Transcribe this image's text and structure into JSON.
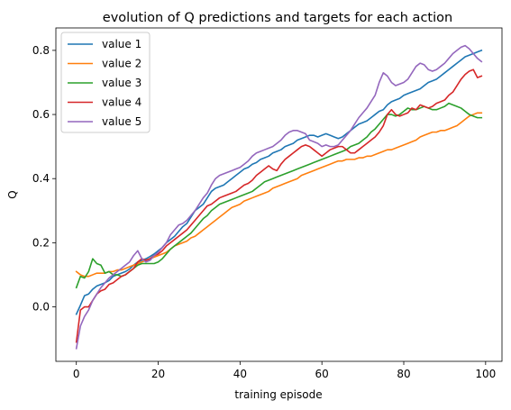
{
  "chart_data": {
    "type": "line",
    "title": "evolution of Q predictions and targets for each action",
    "xlabel": "training episode",
    "ylabel": "Q",
    "xlim": [
      -5,
      104
    ],
    "ylim": [
      -0.17,
      0.87
    ],
    "xticks": [
      0,
      20,
      40,
      60,
      80,
      100
    ],
    "yticks": [
      0.0,
      0.2,
      0.4,
      0.6,
      0.8
    ],
    "xtick_labels": [
      "0",
      "20",
      "40",
      "60",
      "80",
      "100"
    ],
    "ytick_labels": [
      "0.0",
      "0.2",
      "0.4",
      "0.6",
      "0.8"
    ],
    "grid": false,
    "legend_position": "top-left",
    "x": [
      0,
      1,
      2,
      3,
      4,
      5,
      6,
      7,
      8,
      9,
      10,
      11,
      12,
      13,
      14,
      15,
      16,
      17,
      18,
      19,
      20,
      21,
      22,
      23,
      24,
      25,
      26,
      27,
      28,
      29,
      30,
      31,
      32,
      33,
      34,
      35,
      36,
      37,
      38,
      39,
      40,
      41,
      42,
      43,
      44,
      45,
      46,
      47,
      48,
      49,
      50,
      51,
      52,
      53,
      54,
      55,
      56,
      57,
      58,
      59,
      60,
      61,
      62,
      63,
      64,
      65,
      66,
      67,
      68,
      69,
      70,
      71,
      72,
      73,
      74,
      75,
      76,
      77,
      78,
      79,
      80,
      81,
      82,
      83,
      84,
      85,
      86,
      87,
      88,
      89,
      90,
      91,
      92,
      93,
      94,
      95,
      96,
      97,
      98,
      99
    ],
    "series": [
      {
        "name": "value 1",
        "color": "#1f77b4",
        "values": [
          -0.023,
          0.005,
          0.035,
          0.04,
          0.055,
          0.065,
          0.07,
          0.075,
          0.082,
          0.095,
          0.1,
          0.105,
          0.11,
          0.118,
          0.13,
          0.14,
          0.145,
          0.15,
          0.157,
          0.165,
          0.175,
          0.185,
          0.2,
          0.21,
          0.22,
          0.235,
          0.25,
          0.26,
          0.28,
          0.3,
          0.31,
          0.32,
          0.34,
          0.36,
          0.37,
          0.375,
          0.38,
          0.39,
          0.4,
          0.41,
          0.42,
          0.43,
          0.435,
          0.445,
          0.45,
          0.46,
          0.465,
          0.47,
          0.48,
          0.485,
          0.49,
          0.5,
          0.505,
          0.51,
          0.52,
          0.525,
          0.53,
          0.535,
          0.535,
          0.53,
          0.535,
          0.54,
          0.535,
          0.53,
          0.525,
          0.53,
          0.54,
          0.55,
          0.56,
          0.57,
          0.575,
          0.58,
          0.59,
          0.6,
          0.61,
          0.615,
          0.63,
          0.64,
          0.645,
          0.65,
          0.66,
          0.665,
          0.67,
          0.675,
          0.68,
          0.69,
          0.7,
          0.705,
          0.71,
          0.72,
          0.73,
          0.74,
          0.75,
          0.76,
          0.77,
          0.78,
          0.785,
          0.79,
          0.795,
          0.8
        ]
      },
      {
        "name": "value 2",
        "color": "#ff7f0e",
        "values": [
          0.11,
          0.1,
          0.095,
          0.095,
          0.1,
          0.105,
          0.105,
          0.105,
          0.11,
          0.11,
          0.115,
          0.115,
          0.12,
          0.125,
          0.13,
          0.135,
          0.14,
          0.145,
          0.15,
          0.155,
          0.16,
          0.165,
          0.17,
          0.18,
          0.19,
          0.195,
          0.2,
          0.205,
          0.215,
          0.22,
          0.23,
          0.24,
          0.25,
          0.26,
          0.27,
          0.28,
          0.29,
          0.3,
          0.31,
          0.315,
          0.32,
          0.33,
          0.335,
          0.34,
          0.345,
          0.35,
          0.355,
          0.36,
          0.37,
          0.375,
          0.38,
          0.385,
          0.39,
          0.395,
          0.4,
          0.41,
          0.415,
          0.42,
          0.425,
          0.43,
          0.435,
          0.44,
          0.445,
          0.45,
          0.455,
          0.455,
          0.46,
          0.46,
          0.46,
          0.465,
          0.465,
          0.47,
          0.47,
          0.475,
          0.48,
          0.485,
          0.49,
          0.49,
          0.495,
          0.5,
          0.505,
          0.51,
          0.515,
          0.52,
          0.53,
          0.535,
          0.54,
          0.545,
          0.545,
          0.55,
          0.55,
          0.555,
          0.56,
          0.565,
          0.575,
          0.585,
          0.595,
          0.6,
          0.605,
          0.605
        ]
      },
      {
        "name": "value 3",
        "color": "#2ca02c",
        "values": [
          0.06,
          0.095,
          0.09,
          0.11,
          0.15,
          0.135,
          0.13,
          0.105,
          0.11,
          0.1,
          0.1,
          0.095,
          0.1,
          0.11,
          0.12,
          0.13,
          0.135,
          0.135,
          0.135,
          0.135,
          0.14,
          0.15,
          0.165,
          0.18,
          0.19,
          0.2,
          0.21,
          0.22,
          0.23,
          0.245,
          0.26,
          0.275,
          0.285,
          0.3,
          0.31,
          0.32,
          0.325,
          0.33,
          0.335,
          0.34,
          0.345,
          0.35,
          0.355,
          0.36,
          0.37,
          0.38,
          0.39,
          0.395,
          0.4,
          0.405,
          0.41,
          0.415,
          0.42,
          0.425,
          0.43,
          0.435,
          0.44,
          0.445,
          0.45,
          0.455,
          0.46,
          0.465,
          0.47,
          0.475,
          0.48,
          0.485,
          0.49,
          0.5,
          0.505,
          0.51,
          0.52,
          0.53,
          0.545,
          0.555,
          0.57,
          0.585,
          0.6,
          0.6,
          0.595,
          0.6,
          0.61,
          0.62,
          0.615,
          0.615,
          0.62,
          0.625,
          0.62,
          0.615,
          0.615,
          0.62,
          0.625,
          0.635,
          0.63,
          0.625,
          0.62,
          0.61,
          0.6,
          0.595,
          0.59,
          0.59
        ]
      },
      {
        "name": "value 4",
        "color": "#d62728",
        "values": [
          -0.11,
          -0.01,
          0.0,
          0.0,
          0.02,
          0.04,
          0.05,
          0.055,
          0.07,
          0.075,
          0.085,
          0.095,
          0.1,
          0.11,
          0.12,
          0.14,
          0.15,
          0.145,
          0.15,
          0.16,
          0.165,
          0.175,
          0.19,
          0.2,
          0.21,
          0.22,
          0.23,
          0.24,
          0.255,
          0.27,
          0.285,
          0.3,
          0.315,
          0.32,
          0.33,
          0.34,
          0.345,
          0.35,
          0.355,
          0.36,
          0.37,
          0.38,
          0.385,
          0.395,
          0.41,
          0.42,
          0.43,
          0.44,
          0.43,
          0.425,
          0.445,
          0.46,
          0.47,
          0.48,
          0.49,
          0.5,
          0.505,
          0.5,
          0.49,
          0.48,
          0.47,
          0.48,
          0.49,
          0.495,
          0.5,
          0.5,
          0.49,
          0.48,
          0.48,
          0.49,
          0.5,
          0.51,
          0.52,
          0.53,
          0.545,
          0.565,
          0.6,
          0.615,
          0.6,
          0.595,
          0.6,
          0.605,
          0.62,
          0.615,
          0.63,
          0.625,
          0.62,
          0.625,
          0.635,
          0.64,
          0.645,
          0.66,
          0.67,
          0.69,
          0.71,
          0.725,
          0.735,
          0.74,
          0.715,
          0.72
        ]
      },
      {
        "name": "value 5",
        "color": "#9467bd",
        "values": [
          -0.13,
          -0.06,
          -0.03,
          -0.01,
          0.02,
          0.04,
          0.06,
          0.075,
          0.09,
          0.1,
          0.11,
          0.12,
          0.13,
          0.14,
          0.16,
          0.175,
          0.15,
          0.14,
          0.145,
          0.16,
          0.17,
          0.185,
          0.2,
          0.225,
          0.24,
          0.255,
          0.26,
          0.27,
          0.285,
          0.3,
          0.32,
          0.34,
          0.355,
          0.38,
          0.4,
          0.41,
          0.415,
          0.42,
          0.425,
          0.43,
          0.435,
          0.445,
          0.455,
          0.47,
          0.48,
          0.485,
          0.49,
          0.495,
          0.5,
          0.51,
          0.52,
          0.535,
          0.545,
          0.55,
          0.55,
          0.545,
          0.54,
          0.52,
          0.515,
          0.51,
          0.5,
          0.505,
          0.5,
          0.5,
          0.505,
          0.52,
          0.535,
          0.55,
          0.57,
          0.59,
          0.605,
          0.62,
          0.64,
          0.66,
          0.7,
          0.73,
          0.72,
          0.7,
          0.69,
          0.695,
          0.7,
          0.71,
          0.73,
          0.75,
          0.76,
          0.755,
          0.74,
          0.735,
          0.74,
          0.75,
          0.76,
          0.775,
          0.79,
          0.8,
          0.81,
          0.815,
          0.805,
          0.79,
          0.775,
          0.765
        ]
      }
    ]
  }
}
